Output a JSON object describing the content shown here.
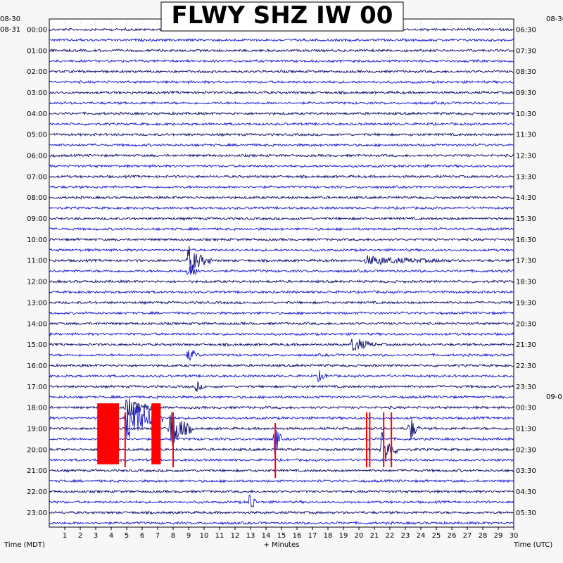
{
  "chart_data": {
    "type": "line",
    "title": "FLWY SHZ IW 00",
    "xlabel": "+ Minutes",
    "left_axis_label": "Time (MDT)",
    "right_axis_label": "Time (UTC)",
    "xlim": [
      0,
      30
    ],
    "x_ticks": [
      1,
      2,
      3,
      4,
      5,
      6,
      7,
      8,
      9,
      10,
      11,
      12,
      13,
      14,
      15,
      16,
      17,
      18,
      19,
      20,
      21,
      22,
      23,
      24,
      25,
      26,
      27,
      28,
      29,
      30
    ],
    "grid": true,
    "trace_colors": [
      "#0a0a6e",
      "#1414d2"
    ],
    "clip_color": "#ff0000",
    "left_date_labels": [
      "08-30",
      "08-31"
    ],
    "right_date_label": "09-0",
    "left_hour_labels": [
      "00:00",
      "01:00",
      "02:00",
      "03:00",
      "04:00",
      "05:00",
      "06:00",
      "07:00",
      "08:00",
      "09:00",
      "10:00",
      "11:00",
      "12:00",
      "13:00",
      "14:00",
      "15:00",
      "16:00",
      "17:00",
      "18:00",
      "19:00",
      "20:00",
      "21:00",
      "22:00",
      "23:00"
    ],
    "right_hour_labels": [
      "06:30",
      "07:30",
      "08:30",
      "09:30",
      "10:30",
      "11:30",
      "12:30",
      "13:30",
      "14:30",
      "15:30",
      "16:30",
      "17:30",
      "18:30",
      "19:30",
      "20:30",
      "21:30",
      "22:30",
      "23:30",
      "00:30",
      "01:30",
      "02:30",
      "03:30",
      "04:30",
      "05:30"
    ],
    "trace_rows": 48,
    "events": [
      {
        "hour_row": 22,
        "minute": 9.0,
        "amp": 22,
        "dur": 1.5
      },
      {
        "hour_row": 23,
        "minute": 9.0,
        "amp": 10,
        "dur": 1.0
      },
      {
        "hour_row": 22,
        "minute": 20.5,
        "amp": 6,
        "dur": 5.5
      },
      {
        "hour_row": 30,
        "minute": 19.6,
        "amp": 12,
        "dur": 1.5
      },
      {
        "hour_row": 31,
        "minute": 9.0,
        "amp": 10,
        "dur": 0.8
      },
      {
        "hour_row": 33,
        "minute": 17.4,
        "amp": 8,
        "dur": 0.6
      },
      {
        "hour_row": 34,
        "minute": 9.5,
        "amp": 8,
        "dur": 0.5
      },
      {
        "hour_row": 36,
        "minute": 5.0,
        "amp": 14,
        "dur": 2.0
      },
      {
        "hour_row": 37,
        "minute": 5.0,
        "amp": 40,
        "dur": 2.5
      },
      {
        "hour_row": 38,
        "minute": 7.8,
        "amp": 34,
        "dur": 1.5
      },
      {
        "hour_row": 39,
        "minute": 14.6,
        "amp": 30,
        "dur": 0.4
      },
      {
        "hour_row": 40,
        "minute": 21.5,
        "amp": 30,
        "dur": 1.0
      },
      {
        "hour_row": 38,
        "minute": 23.3,
        "amp": 22,
        "dur": 0.6
      },
      {
        "hour_row": 45,
        "minute": 13.0,
        "amp": 22,
        "dur": 0.4
      }
    ],
    "clipped_blocks": [
      {
        "start_minute": 3.1,
        "end_minute": 4.5,
        "hour_row_start": 36,
        "hour_row_end": 41
      },
      {
        "start_minute": 6.6,
        "end_minute": 7.2,
        "hour_row_start": 36,
        "hour_row_end": 41
      }
    ],
    "clipped_spikes": [
      {
        "minute": 4.9,
        "hour_row": 37
      },
      {
        "minute": 8.0,
        "hour_row": 37
      },
      {
        "minute": 14.6,
        "hour_row": 38
      },
      {
        "minute": 20.5,
        "hour_row": 37
      },
      {
        "minute": 20.7,
        "hour_row": 37
      },
      {
        "minute": 21.6,
        "hour_row": 37
      },
      {
        "minute": 22.1,
        "hour_row": 37
      }
    ]
  }
}
